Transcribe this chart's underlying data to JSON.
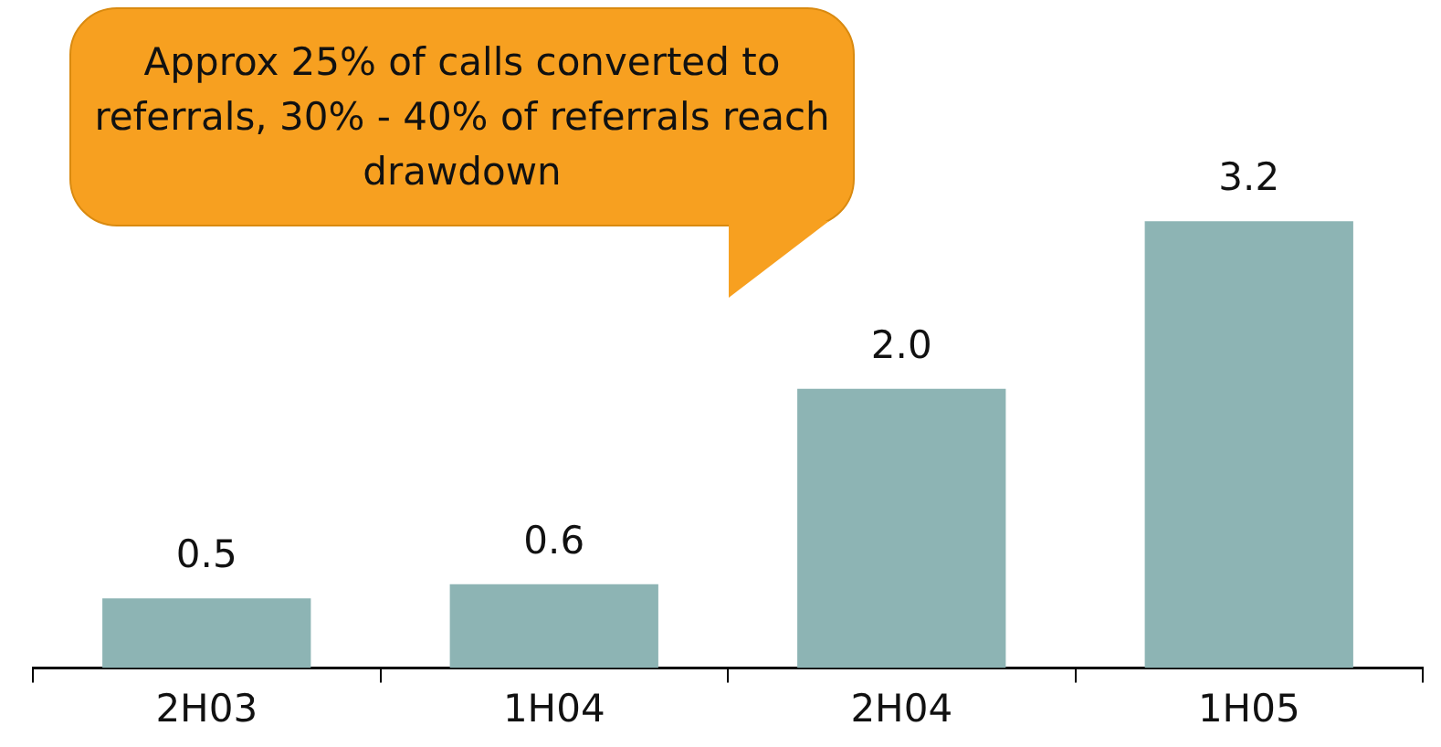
{
  "chart_data": {
    "type": "bar",
    "categories": [
      "2H03",
      "1H04",
      "2H04",
      "1H05"
    ],
    "values": [
      0.5,
      0.6,
      2.0,
      3.2
    ],
    "value_labels": [
      "0.5",
      "0.6",
      "2.0",
      "3.2"
    ],
    "color": "#8db4b4",
    "relative": false,
    "annotations": [
      "Approx 25% of calls converted to referrals, 30% - 40% of referrals reach drawdown"
    ],
    "grid": false,
    "legend": false
  }
}
